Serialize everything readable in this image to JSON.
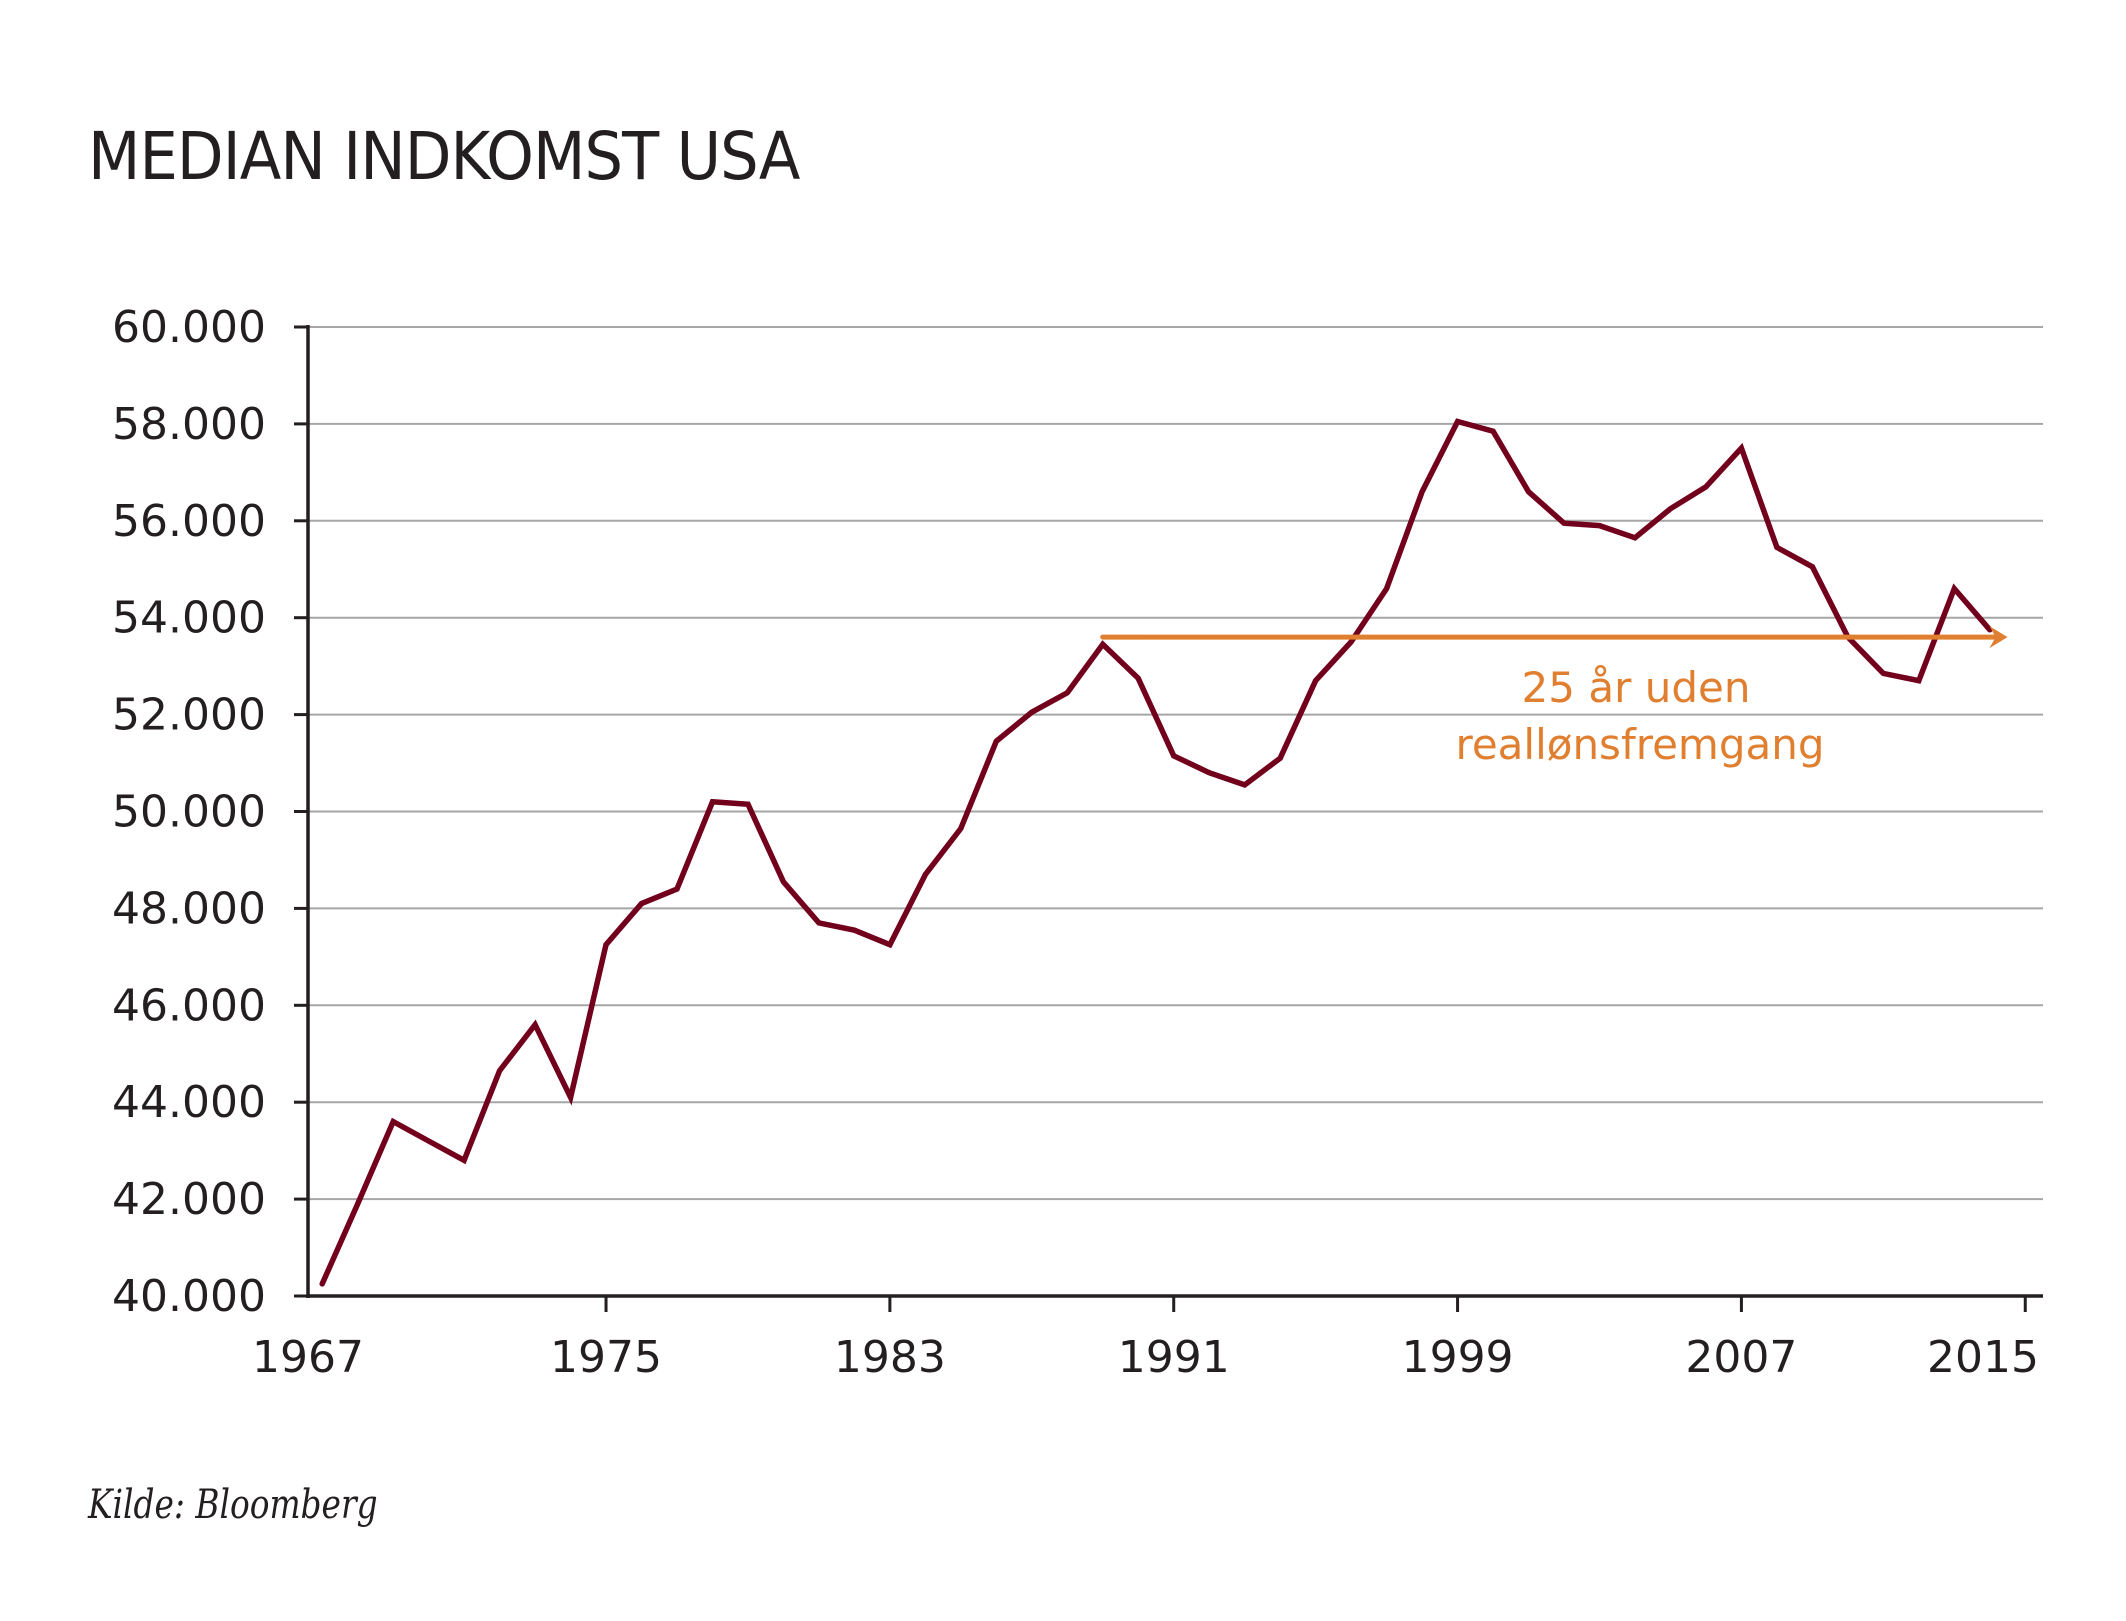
{
  "header": {
    "title": "MEDIAN INDKOMST USA"
  },
  "footer": {
    "source": "Kilde: Bloomberg"
  },
  "colors": {
    "series": "#72001d",
    "annotation": "#e07f30",
    "grid": "#a6a6a6",
    "axis": "#231f20",
    "text": "#231f20"
  },
  "chart_data": {
    "type": "line",
    "title": "MEDIAN INDKOMST USA",
    "xlabel": "",
    "ylabel": "",
    "xlim": [
      1966.6,
      2015.5
    ],
    "ylim": [
      40000,
      60000
    ],
    "grid": true,
    "y_ticks": [
      40000,
      42000,
      44000,
      46000,
      48000,
      50000,
      52000,
      54000,
      56000,
      58000,
      60000
    ],
    "y_tick_labels": [
      "40.000",
      "42.000",
      "44.000",
      "46.000",
      "48.000",
      "50.000",
      "52.000",
      "54.000",
      "56.000",
      "58.000",
      "60.000"
    ],
    "x_ticks": [
      1967,
      1975,
      1983,
      1991,
      1999,
      2007,
      2015
    ],
    "x_tick_labels": [
      "1967",
      "1975",
      "1983",
      "1991",
      "1999",
      "2007",
      "2015"
    ],
    "series": [
      {
        "name": "Median indkomst",
        "x": [
          1967,
          1968,
          1969,
          1970,
          1971,
          1972,
          1973,
          1974,
          1975,
          1976,
          1977,
          1978,
          1979,
          1980,
          1981,
          1982,
          1983,
          1984,
          1985,
          1986,
          1987,
          1988,
          1989,
          1990,
          1991,
          1992,
          1993,
          1994,
          1995,
          1996,
          1997,
          1998,
          1999,
          2000,
          2001,
          2002,
          2003,
          2004,
          2005,
          2006,
          2007,
          2008,
          2009,
          2010,
          2011,
          2012,
          2013,
          2014
        ],
        "values": [
          40250,
          41900,
          43600,
          43200,
          42800,
          44650,
          45600,
          44100,
          47250,
          48100,
          48400,
          50200,
          50150,
          48550,
          47700,
          47550,
          47250,
          48700,
          49650,
          51450,
          52050,
          52450,
          53450,
          52750,
          51150,
          50800,
          50550,
          51100,
          52700,
          53500,
          54600,
          56600,
          58050,
          57850,
          56600,
          55950,
          55900,
          55650,
          56250,
          56700,
          57500,
          55450,
          55050,
          53600,
          52850,
          52700,
          54600,
          53750
        ]
      }
    ],
    "annotations": [
      {
        "type": "arrow",
        "from_x": 1989,
        "to_x": 2014.5,
        "y": 53600,
        "label_lines": [
          "25 år uden",
          "reallønsfremgang"
        ]
      }
    ]
  }
}
